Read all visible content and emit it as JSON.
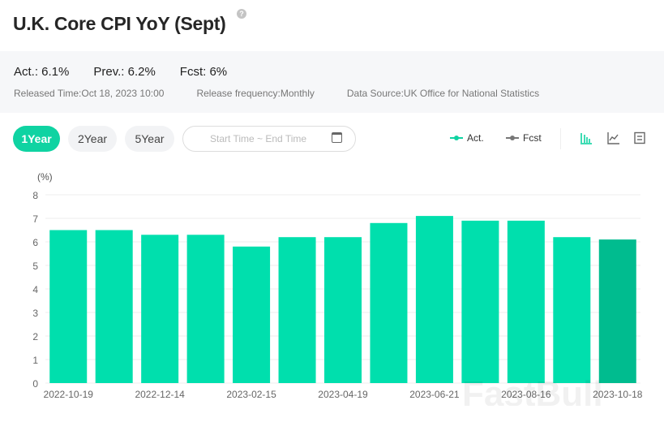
{
  "header": {
    "title": "U.K. Core CPI YoY (Sept)",
    "help_icon": "question-circle-icon"
  },
  "summary": {
    "actual": "Act.: 6.1%",
    "previous": "Prev.: 6.2%",
    "forecast": "Fcst: 6%",
    "released": "Released Time:Oct 18, 2023 10:00",
    "frequency": "Release frequency:Monthly",
    "source": "Data Source:UK Office for National Statistics"
  },
  "controls": {
    "ranges": [
      "1Year",
      "2Year",
      "5Year"
    ],
    "active_range": "1Year",
    "date_placeholder": "Start Time ~ End Time",
    "legend": {
      "act": "Act.",
      "fcst": "Fcst"
    },
    "view_icons": [
      "bar-chart-icon",
      "line-chart-icon",
      "table-icon"
    ],
    "active_view": "bar-chart-icon"
  },
  "colors": {
    "accent": "#0fd3a2",
    "bar": "#00dfad",
    "bar_latest": "#00bc8f",
    "fcst": "#777777"
  },
  "watermark": "FastBull",
  "chart_data": {
    "type": "bar",
    "ylabel": "(%)",
    "ylim": [
      0,
      8
    ],
    "yticks": [
      0,
      1,
      2,
      3,
      4,
      5,
      6,
      7,
      8
    ],
    "grid": true,
    "x_tick_labels": [
      "2022-10-19",
      "",
      "2022-12-14",
      "",
      "2023-02-15",
      "",
      "2023-04-19",
      "",
      "2023-06-21",
      "",
      "2023-08-16",
      "",
      "2023-10-18"
    ],
    "series": [
      {
        "name": "Act.",
        "values": [
          6.5,
          6.5,
          6.3,
          6.3,
          5.8,
          6.2,
          6.2,
          6.8,
          7.1,
          6.9,
          6.9,
          6.2,
          6.1
        ]
      }
    ]
  }
}
